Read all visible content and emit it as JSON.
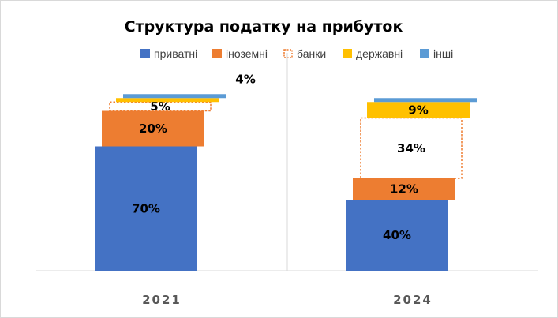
{
  "chart_data": {
    "type": "bar",
    "subtype": "stacked-waterfall",
    "title": "Структура податку на прибуток",
    "categories": [
      "2021",
      "2024"
    ],
    "series": [
      {
        "name": "приватні",
        "color": "#4472C4",
        "style": "filled",
        "values": [
          70,
          40
        ]
      },
      {
        "name": "іноземні",
        "color": "#ED7D31",
        "style": "filled",
        "values": [
          20,
          12
        ]
      },
      {
        "name": "банки",
        "color": "#ED7D31",
        "style": "outline",
        "values": [
          5,
          34
        ]
      },
      {
        "name": "державні",
        "color": "#FFC000",
        "style": "filled",
        "values": [
          null,
          9
        ]
      },
      {
        "name": "інші",
        "color": "#5B9BD5",
        "style": "filled",
        "values": [
          null,
          null
        ]
      }
    ],
    "data_labels": [
      [
        "70%",
        "20%",
        "5%",
        "",
        "4%"
      ],
      [
        "40%",
        "12%",
        "34%",
        "9%",
        ""
      ]
    ],
    "legend_position": "top",
    "grid": false,
    "y_axis_visible": false
  }
}
